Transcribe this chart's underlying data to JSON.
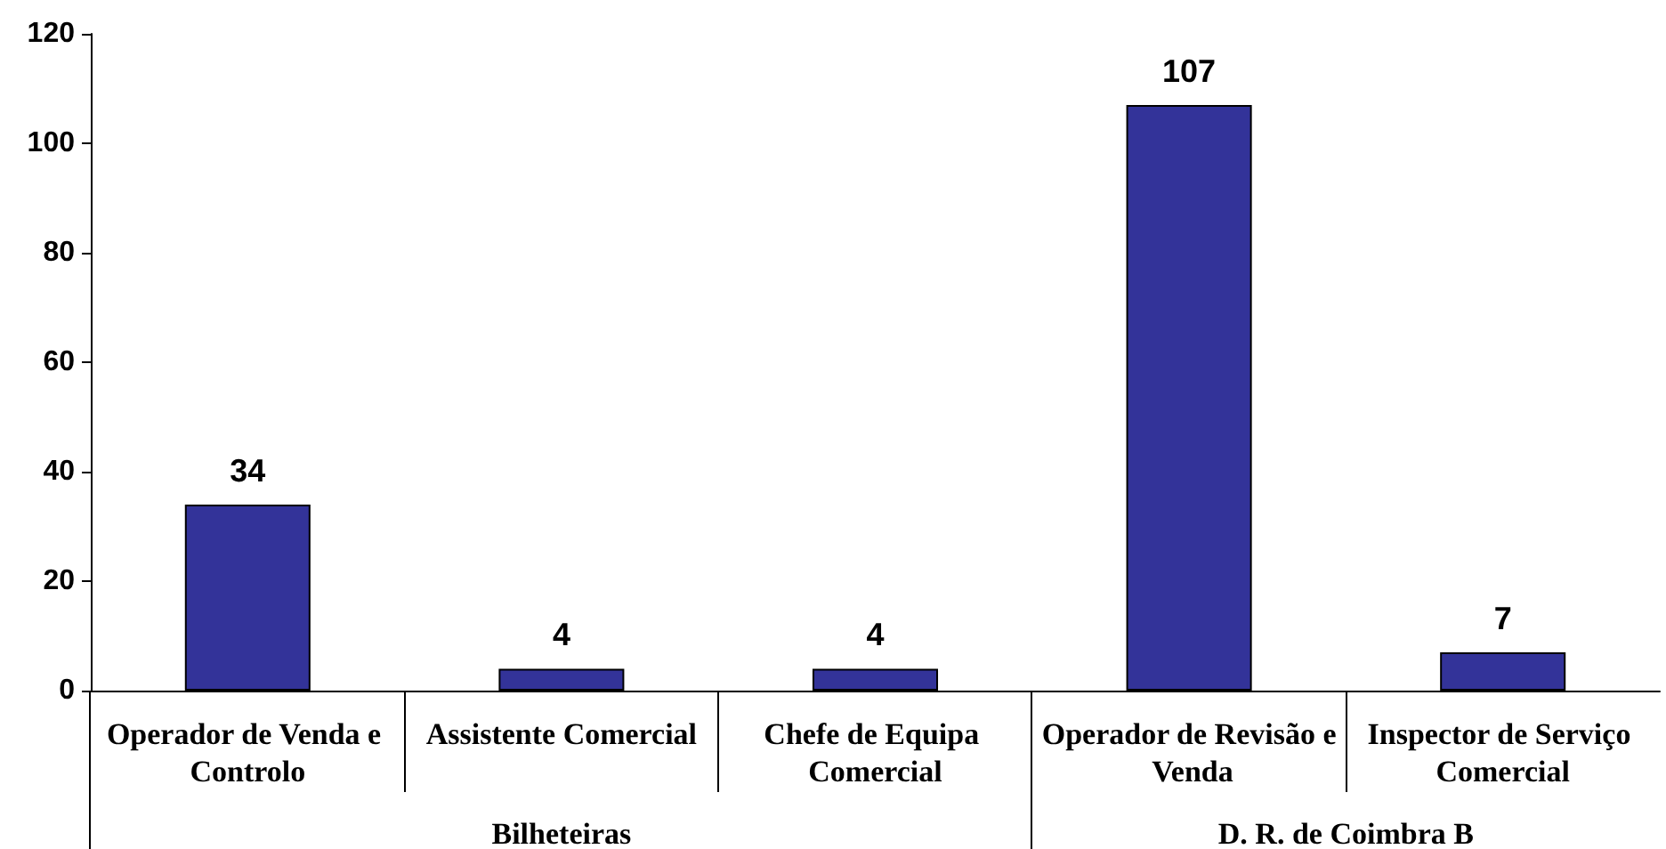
{
  "chart_data": {
    "type": "bar",
    "categories": [
      "Operador de Venda e Controlo",
      "Assistente Comercial",
      "Chefe de Equipa Comercial",
      "Operador de Revisão e Venda",
      "Inspector de Serviço Comercial"
    ],
    "values": [
      34,
      4,
      4,
      107,
      7
    ],
    "color": "#333399",
    "ylim": [
      0,
      120
    ],
    "yticks": [
      0,
      20,
      40,
      60,
      80,
      100,
      120
    ],
    "data_labels": true,
    "annotations": [
      "Bilheteiras",
      "D. R. de Coimbra B"
    ]
  }
}
